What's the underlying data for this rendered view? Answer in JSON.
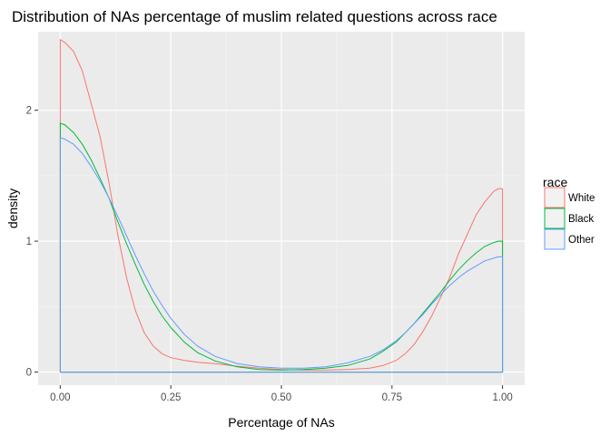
{
  "chart_data": {
    "type": "area",
    "title": "Distribution of NAs percentage of muslim related questions across race",
    "xlabel": "Percentage of NAs",
    "ylabel": "density",
    "xlim": [
      -0.05,
      1.05
    ],
    "ylim": [
      -0.1,
      2.6
    ],
    "x_ticks": [
      0,
      0.25,
      0.5,
      0.75,
      1
    ],
    "x_tick_labels": [
      "0.00",
      "0.25",
      "0.50",
      "0.75",
      "1.00"
    ],
    "y_ticks": [
      0,
      1,
      2
    ],
    "y_tick_labels": [
      "0",
      "1",
      "2"
    ],
    "grid": true,
    "background": "#ebebeb",
    "legend": {
      "title": "race",
      "position": "right"
    },
    "series": [
      {
        "name": "White",
        "color": "#f8766d",
        "x": [
          0,
          0.01,
          0.03,
          0.05,
          0.07,
          0.09,
          0.11,
          0.13,
          0.15,
          0.17,
          0.19,
          0.21,
          0.23,
          0.25,
          0.28,
          0.31,
          0.35,
          0.4,
          0.45,
          0.5,
          0.55,
          0.6,
          0.65,
          0.7,
          0.73,
          0.76,
          0.78,
          0.8,
          0.82,
          0.84,
          0.86,
          0.88,
          0.9,
          0.92,
          0.94,
          0.96,
          0.98,
          0.99,
          1.0
        ],
        "values": [
          2.54,
          2.52,
          2.45,
          2.3,
          2.05,
          1.8,
          1.45,
          1.05,
          0.72,
          0.47,
          0.3,
          0.2,
          0.14,
          0.11,
          0.09,
          0.075,
          0.065,
          0.045,
          0.03,
          0.02,
          0.015,
          0.015,
          0.02,
          0.03,
          0.05,
          0.09,
          0.14,
          0.21,
          0.31,
          0.43,
          0.57,
          0.72,
          0.9,
          1.05,
          1.2,
          1.3,
          1.38,
          1.4,
          1.4
        ]
      },
      {
        "name": "Black",
        "color": "#00ba38",
        "x": [
          0,
          0.01,
          0.03,
          0.05,
          0.07,
          0.09,
          0.11,
          0.13,
          0.15,
          0.17,
          0.19,
          0.21,
          0.23,
          0.25,
          0.28,
          0.31,
          0.35,
          0.4,
          0.45,
          0.5,
          0.55,
          0.6,
          0.65,
          0.7,
          0.73,
          0.76,
          0.78,
          0.8,
          0.82,
          0.84,
          0.86,
          0.88,
          0.9,
          0.92,
          0.94,
          0.96,
          0.98,
          0.99,
          1.0
        ],
        "values": [
          1.9,
          1.89,
          1.83,
          1.74,
          1.62,
          1.48,
          1.33,
          1.15,
          0.98,
          0.82,
          0.67,
          0.54,
          0.43,
          0.34,
          0.23,
          0.15,
          0.085,
          0.04,
          0.02,
          0.015,
          0.02,
          0.03,
          0.05,
          0.1,
          0.16,
          0.23,
          0.3,
          0.37,
          0.45,
          0.53,
          0.61,
          0.7,
          0.78,
          0.85,
          0.91,
          0.96,
          0.99,
          1.0,
          1.0
        ]
      },
      {
        "name": "Other",
        "color": "#619cff",
        "x": [
          0,
          0.01,
          0.03,
          0.05,
          0.07,
          0.09,
          0.11,
          0.13,
          0.15,
          0.17,
          0.19,
          0.21,
          0.23,
          0.25,
          0.28,
          0.31,
          0.35,
          0.4,
          0.45,
          0.5,
          0.55,
          0.6,
          0.65,
          0.7,
          0.73,
          0.76,
          0.78,
          0.8,
          0.82,
          0.84,
          0.86,
          0.88,
          0.9,
          0.92,
          0.94,
          0.96,
          0.98,
          0.99,
          1.0
        ],
        "values": [
          1.79,
          1.78,
          1.74,
          1.67,
          1.57,
          1.46,
          1.33,
          1.19,
          1.04,
          0.89,
          0.75,
          0.62,
          0.51,
          0.41,
          0.29,
          0.2,
          0.12,
          0.065,
          0.04,
          0.03,
          0.03,
          0.04,
          0.07,
          0.12,
          0.17,
          0.24,
          0.3,
          0.37,
          0.44,
          0.52,
          0.59,
          0.66,
          0.72,
          0.77,
          0.81,
          0.85,
          0.87,
          0.88,
          0.88
        ]
      }
    ]
  }
}
